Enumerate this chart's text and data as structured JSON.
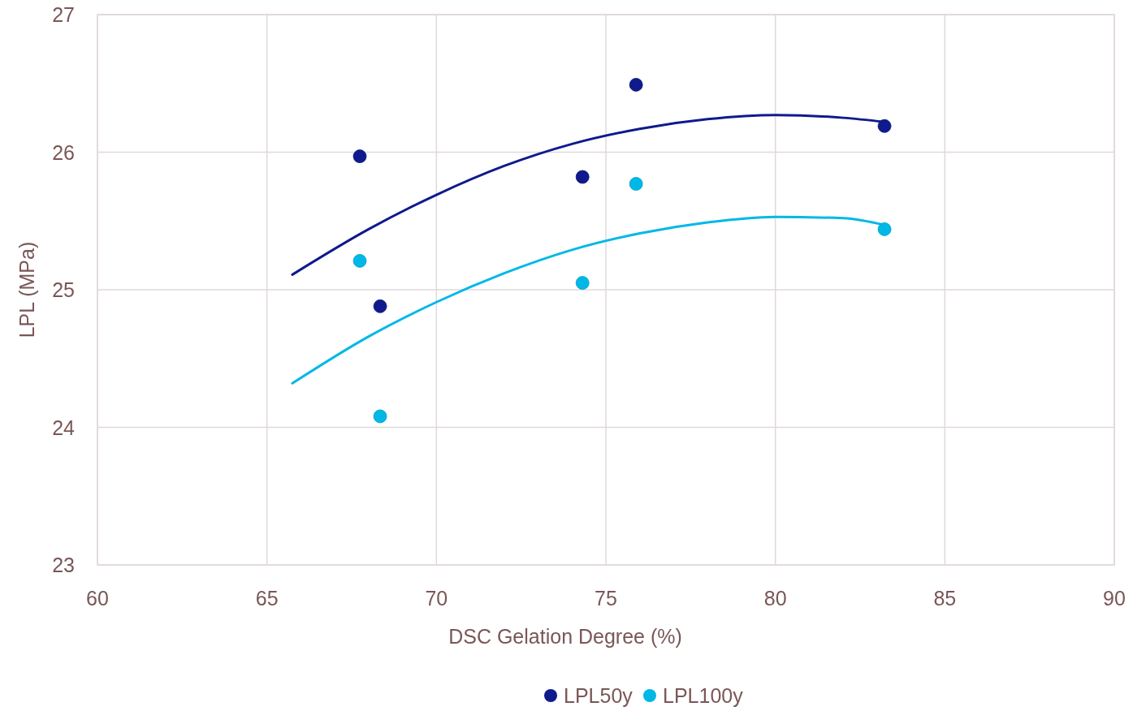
{
  "chart_data": {
    "type": "scatter",
    "xlabel": "DSC Gelation Degree (%)",
    "ylabel": "LPL (MPa)",
    "xlim": [
      60,
      90
    ],
    "xticks": [
      60,
      65,
      70,
      75,
      80,
      85,
      90
    ],
    "ylim": [
      23,
      27
    ],
    "yticks": [
      23,
      24,
      25,
      26,
      27
    ],
    "grid": true,
    "legend": "bottom",
    "series": [
      {
        "name": "LPL50y",
        "color": "#0f1a8c",
        "marker": "circle",
        "x": [
          67.74,
          68.34,
          74.31,
          75.89,
          83.22
        ],
        "values": [
          25.97,
          24.88,
          25.82,
          26.49,
          26.19
        ]
      },
      {
        "name": "LPL100y",
        "color": "#00b8e6",
        "marker": "circle",
        "x": [
          67.74,
          68.34,
          74.31,
          75.89,
          83.22
        ],
        "values": [
          25.21,
          24.08,
          25.05,
          25.77,
          25.44
        ]
      },
      {
        "type": "line",
        "color": "#0f1a8c",
        "marker": "none",
        "x": [
          65.75,
          68,
          70,
          72,
          74,
          76,
          78,
          80,
          82,
          83.22
        ],
        "values": [
          25.11,
          25.44,
          25.69,
          25.9,
          26.06,
          26.17,
          26.24,
          26.27,
          26.25,
          26.22
        ]
      },
      {
        "type": "line",
        "color": "#00b8e6",
        "marker": "none",
        "x": [
          65.75,
          68,
          70,
          72,
          74,
          76,
          78,
          80,
          82,
          83.22
        ],
        "values": [
          24.32,
          24.66,
          24.91,
          25.12,
          25.29,
          25.41,
          25.49,
          25.53,
          25.52,
          25.47
        ]
      }
    ]
  }
}
